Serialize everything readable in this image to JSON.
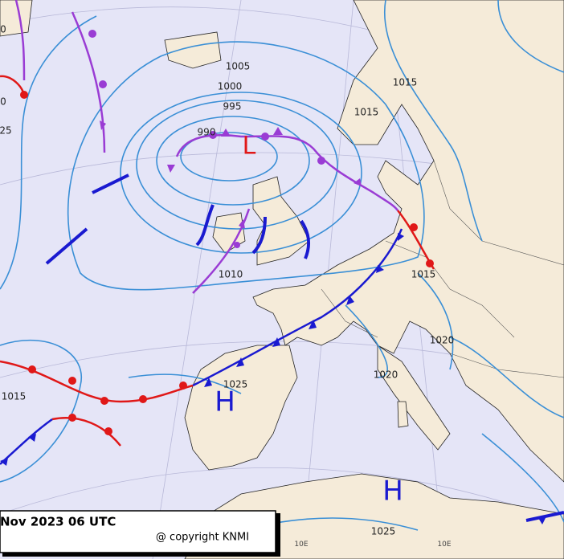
{
  "map": {
    "title": "Nov 2023 06 UTC",
    "copyright": "@ copyright KNMI",
    "pressure_centers": [
      "L",
      "H",
      "H"
    ],
    "isobar_labels": [
      "1005",
      "1000",
      "995",
      "990",
      "1015",
      "1015",
      "1010",
      "1015",
      "1020",
      "1020",
      "1025",
      "1015",
      "1025",
      "0",
      "0",
      "25"
    ],
    "meridian_labels": [
      "10E",
      "10E"
    ]
  }
}
